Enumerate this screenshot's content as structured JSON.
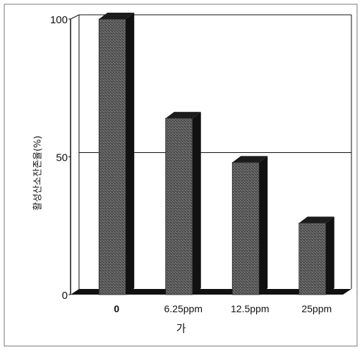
{
  "chart_data": {
    "type": "bar",
    "title": "",
    "xlabel": "",
    "ylabel": "활성산소잔존율(%)",
    "caption": "가",
    "categories": [
      "0",
      "6.25ppm",
      "12.5ppm",
      "25ppm"
    ],
    "values": [
      100,
      64,
      48,
      26
    ],
    "yticks": [
      "0",
      "50",
      "100"
    ],
    "ylim": [
      0,
      100
    ],
    "grid": "horizontal at 50 and 100",
    "legend": "none",
    "bar_style": "3d stippled bars",
    "colors": {
      "bar_front": "#4a4a4a",
      "bar_side": "#111111",
      "bar_top": "#1c1c1c",
      "floor": "#111111",
      "axis": "#111111"
    }
  }
}
